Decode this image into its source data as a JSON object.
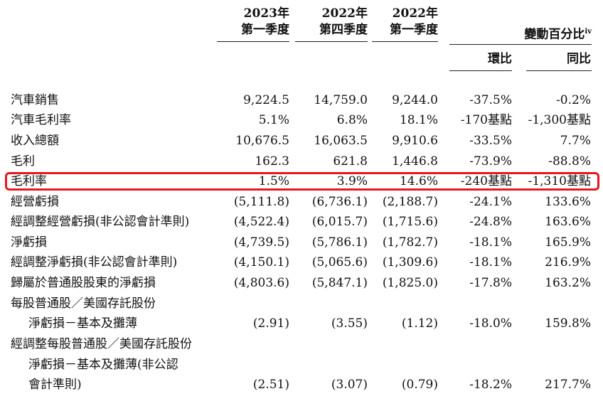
{
  "header": {
    "col1_year": "2023年",
    "col1_period": "第一季度",
    "col2_year": "2022年",
    "col2_period": "第四季度",
    "col3_year": "2022年",
    "col3_period": "第一季度",
    "change_title": "變動百分比",
    "change_note": "iv",
    "qoq": "環比",
    "yoy": "同比"
  },
  "rows": [
    {
      "label": "汽車銷售",
      "c1": "9,224.5",
      "c2": "14,759.0",
      "c3": "9,244.0",
      "c4": "-37.5%",
      "c5": "-0.2%"
    },
    {
      "label": "汽車毛利率",
      "c1": "5.1%",
      "c2": "6.8%",
      "c3": "18.1%",
      "c4": "-170基點",
      "c5": "-1,300基點"
    },
    {
      "label": "收入總額",
      "c1": "10,676.5",
      "c2": "16,063.5",
      "c3": "9,910.6",
      "c4": "-33.5%",
      "c5": "7.7%"
    },
    {
      "label": "毛利",
      "c1": "162.3",
      "c2": "621.8",
      "c3": "1,446.8",
      "c4": "-73.9%",
      "c5": "-88.8%"
    },
    {
      "label": "毛利率",
      "c1": "1.5%",
      "c2": "3.9%",
      "c3": "14.6%",
      "c4": "-240基點",
      "c5": "-1,310基點"
    },
    {
      "label": "經營虧損",
      "c1": "(5,111.8)",
      "c2": "(6,736.1)",
      "c3": "(2,188.7)",
      "c4": "-24.1%",
      "c5": "133.6%"
    },
    {
      "label": "經調整經營虧損(非公認會計準則)",
      "c1": "(4,522.4)",
      "c2": "(6,015.7)",
      "c3": "(1,715.6)",
      "c4": "-24.8%",
      "c5": "163.6%"
    },
    {
      "label": "淨虧損",
      "c1": "(4,739.5)",
      "c2": "(5,786.1)",
      "c3": "(1,782.7)",
      "c4": "-18.1%",
      "c5": "165.9%"
    },
    {
      "label": "經調整淨虧損(非公認會計準則)",
      "c1": "(4,150.1)",
      "c2": "(5,065.6)",
      "c3": "(1,309.6)",
      "c4": "-18.1%",
      "c5": "216.9%"
    },
    {
      "label": "歸屬於普通股股東的淨虧損",
      "c1": "(4,803.6)",
      "c2": "(5,847.1)",
      "c3": "(1,825.0)",
      "c4": "-17.8%",
      "c5": "163.2%"
    },
    {
      "label": "每股普通股／美國存託股份",
      "c1": "",
      "c2": "",
      "c3": "",
      "c4": "",
      "c5": ""
    },
    {
      "label": "淨虧損－基本及攤薄",
      "c1": "(2.91)",
      "c2": "(3.55)",
      "c3": "(1.12)",
      "c4": "-18.0%",
      "c5": "159.8%"
    },
    {
      "label": "經調整每股普通股／美國存託股份",
      "c1": "",
      "c2": "",
      "c3": "",
      "c4": "",
      "c5": ""
    },
    {
      "label": "淨虧損－基本及攤薄(非公認",
      "c1": "",
      "c2": "",
      "c3": "",
      "c4": "",
      "c5": ""
    },
    {
      "label": "會計準則)",
      "c1": "(2.51)",
      "c2": "(3.07)",
      "c3": "(0.79)",
      "c4": "-18.2%",
      "c5": "217.7%"
    }
  ],
  "highlight_color": "#e5171f"
}
